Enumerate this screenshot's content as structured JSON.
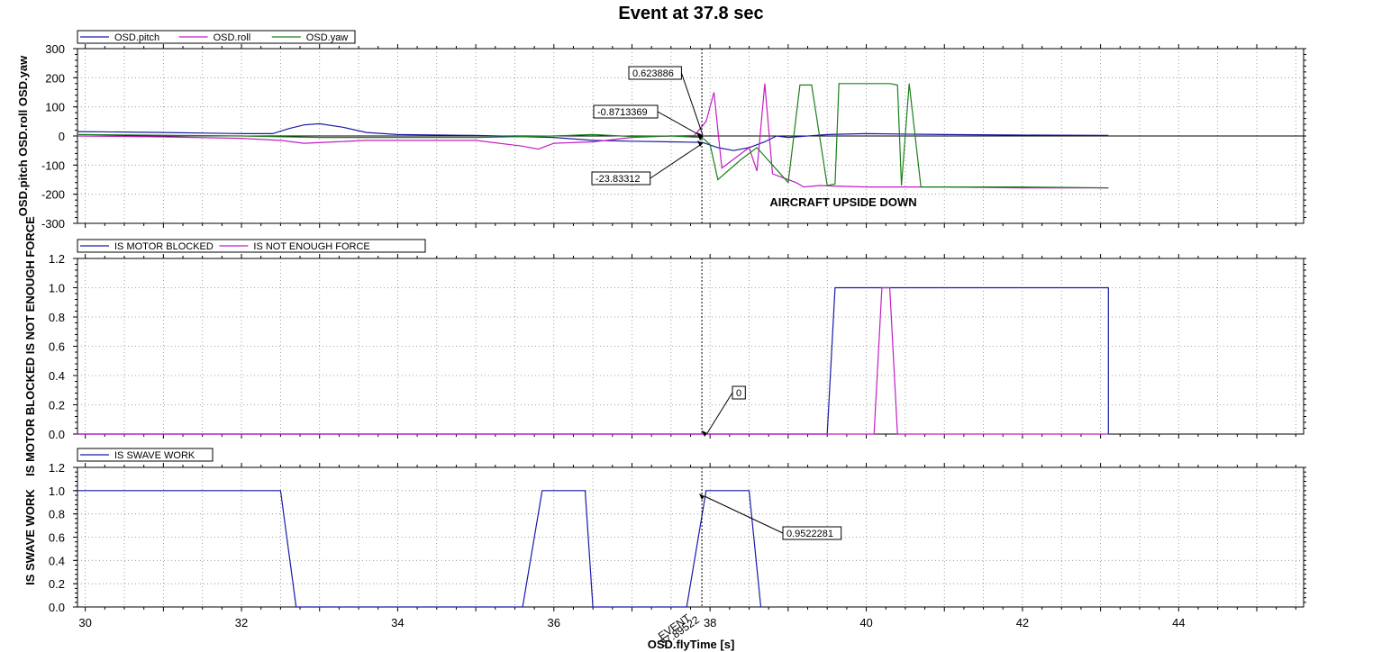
{
  "chart_data": [
    {
      "type": "line",
      "title": "Event at 37.8 sec",
      "ylabel": "OSD.pitch OSD.roll OSD.yaw",
      "xlabel": "OSD.flyTime [s]",
      "xlim": [
        29.9,
        45.6
      ],
      "ylim": [
        -300,
        300
      ],
      "yticks": [
        "300",
        "200",
        "100",
        "0",
        "-100",
        "-200",
        "-300"
      ],
      "xticks": [
        "30",
        "32",
        "34",
        "36",
        "38",
        "40",
        "42",
        "44"
      ],
      "grid": true,
      "legend": "top-left",
      "legend_entries": [
        "OSD.pitch",
        "OSD.roll",
        "OSD.yaw"
      ],
      "series": [
        {
          "name": "OSD.pitch",
          "color": "#1a1aa6",
          "x": [
            29.9,
            31.0,
            32.0,
            32.4,
            32.6,
            32.8,
            33.0,
            33.3,
            33.6,
            34.0,
            35.0,
            36.0,
            36.5,
            37.0,
            37.5,
            37.9,
            38.1,
            38.3,
            38.5,
            38.7,
            38.85,
            39.0,
            39.5,
            40.0,
            41.0,
            42.0,
            43.1
          ],
          "y": [
            15,
            12,
            8,
            8,
            25,
            38,
            42,
            30,
            12,
            5,
            2,
            -5,
            -15,
            -18,
            -20,
            -22,
            -40,
            -50,
            -40,
            -20,
            0,
            -5,
            5,
            8,
            5,
            3,
            2
          ]
        },
        {
          "name": "OSD.roll",
          "color": "#c31ec3",
          "x": [
            29.9,
            31.0,
            32.0,
            32.5,
            32.8,
            33.2,
            33.6,
            34.0,
            35.0,
            35.6,
            35.8,
            36.0,
            36.5,
            37.0,
            37.5,
            37.8,
            37.95,
            38.05,
            38.15,
            38.3,
            38.5,
            38.6,
            38.7,
            38.8,
            38.9,
            39.0,
            39.1,
            39.2,
            39.4,
            39.6,
            40.0,
            41.0,
            42.0,
            43.1
          ],
          "y": [
            0,
            -3,
            -8,
            -15,
            -25,
            -20,
            -15,
            -15,
            -15,
            -35,
            -45,
            -25,
            -20,
            -5,
            0,
            2,
            50,
            150,
            -110,
            -80,
            -40,
            -120,
            180,
            -130,
            -140,
            -150,
            -160,
            -175,
            -170,
            -172,
            -175,
            -175,
            -178,
            -178
          ]
        },
        {
          "name": "OSD.yaw",
          "color": "#1a801a",
          "x": [
            29.9,
            32.0,
            33.0,
            34.0,
            35.0,
            36.0,
            36.5,
            37.0,
            37.5,
            37.9,
            38.0,
            38.1,
            38.4,
            38.6,
            38.8,
            39.0,
            39.15,
            39.3,
            39.5,
            39.6,
            39.65,
            39.8,
            40.0,
            40.3,
            40.4,
            40.45,
            40.55,
            40.7,
            41.0,
            42.0,
            43.1
          ],
          "y": [
            5,
            0,
            -5,
            -5,
            -5,
            0,
            5,
            -2,
            0,
            -5,
            -30,
            -150,
            -80,
            -40,
            -100,
            -160,
            175,
            175,
            -170,
            -165,
            180,
            180,
            180,
            180,
            175,
            -170,
            180,
            -175,
            -175,
            -175,
            -178
          ]
        }
      ],
      "annotations": [
        {
          "text": "0.623886",
          "x": 37.85,
          "y": 0.6
        },
        {
          "text": "-0.8713369",
          "x": 37.85,
          "y": -0.9
        },
        {
          "text": "-23.83312",
          "x": 37.9,
          "y": -23.8
        },
        {
          "text": "AIRCRAFT UPSIDE DOWN",
          "x": 40.0,
          "y": -225
        }
      ]
    },
    {
      "type": "line",
      "ylabel": "IS MOTOR BLOCKED IS NOT ENOUGH FORCE",
      "xlim": [
        29.9,
        45.6
      ],
      "ylim": [
        0,
        1.2
      ],
      "yticks": [
        "1.2",
        "1.0",
        "0.8",
        "0.6",
        "0.4",
        "0.2",
        "0.0"
      ],
      "grid": true,
      "legend": "top-left",
      "legend_entries": [
        "IS MOTOR BLOCKED",
        "IS NOT ENOUGH FORCE"
      ],
      "series": [
        {
          "name": "IS MOTOR BLOCKED",
          "color": "#1a1aa6",
          "x": [
            29.9,
            39.5,
            39.6,
            43.1,
            43.1
          ],
          "y": [
            0,
            0,
            1,
            1,
            0
          ]
        },
        {
          "name": "IS NOT ENOUGH FORCE",
          "color": "#c31ec3",
          "x": [
            29.9,
            40.1,
            40.2,
            40.3,
            40.4,
            43.1
          ],
          "y": [
            0,
            0,
            1,
            1,
            0,
            0
          ]
        }
      ],
      "annotations": [
        {
          "text": "0",
          "x": 37.95,
          "y": 0
        }
      ]
    },
    {
      "type": "line",
      "ylabel": "IS SWAVE WORK",
      "xlim": [
        29.9,
        45.6
      ],
      "ylim": [
        0,
        1.2
      ],
      "yticks": [
        "1.2",
        "1.0",
        "0.8",
        "0.6",
        "0.4",
        "0.2",
        "0.0"
      ],
      "grid": true,
      "legend": "top-left",
      "legend_entries": [
        "IS SWAVE WORK"
      ],
      "series": [
        {
          "name": "IS SWAVE WORK",
          "color": "#1a1aa6",
          "x": [
            29.9,
            32.5,
            32.7,
            35.6,
            35.85,
            36.4,
            36.5,
            37.7,
            37.95,
            38.5,
            38.65
          ],
          "y": [
            1,
            1,
            0,
            0,
            1,
            1,
            0,
            0,
            1,
            1,
            0
          ]
        }
      ],
      "annotations": [
        {
          "text": "0.9522281",
          "x": 37.95,
          "y": 0.95
        }
      ],
      "event": {
        "label": "EVENT",
        "value": "37.89522",
        "x": 37.89522
      }
    }
  ]
}
